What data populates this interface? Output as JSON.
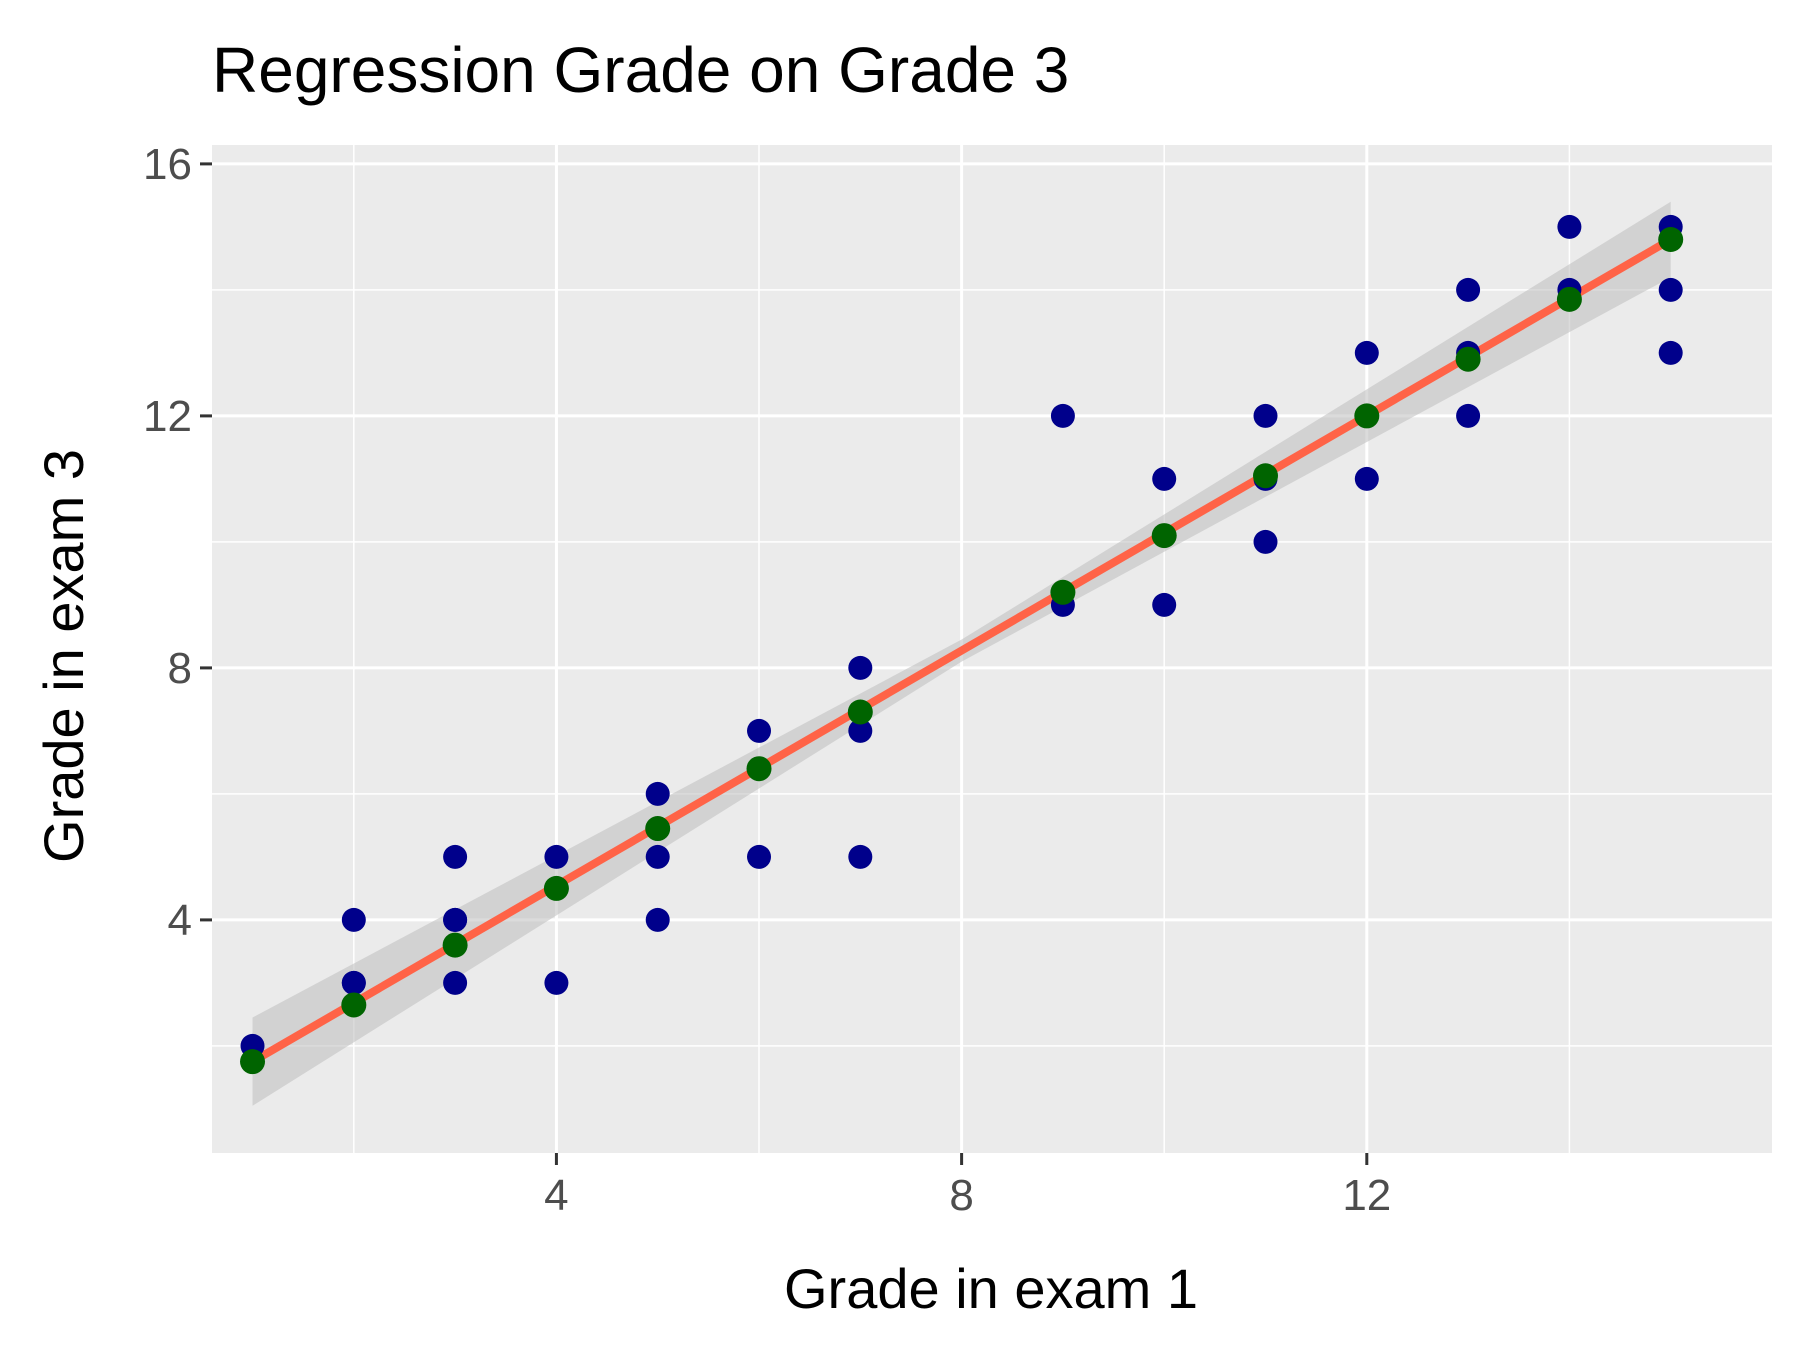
{
  "chart_data": {
    "type": "scatter",
    "title": "Regression Grade on Grade 3",
    "xlabel": "Grade in exam 1",
    "ylabel": "Grade in exam 3",
    "xlim": [
      0.6,
      16.0
    ],
    "ylim": [
      0.3,
      16.3
    ],
    "x_ticks": [
      4,
      8,
      12
    ],
    "x_tick_labels": [
      "4",
      "8",
      "12"
    ],
    "y_ticks": [
      4,
      8,
      12,
      16
    ],
    "y_tick_labels": [
      "4",
      "8",
      "12",
      "16"
    ],
    "grid": true,
    "legend": "none",
    "colors": {
      "panel": "#ebebeb",
      "grid": "#ffffff",
      "points": "#00008b",
      "fitted": "#006400",
      "line": "#ff6347",
      "ribbon": "#bebebe"
    },
    "series": [
      {
        "name": "observed",
        "points": [
          [
            1,
            2
          ],
          [
            2,
            3
          ],
          [
            2,
            4
          ],
          [
            2,
            3
          ],
          [
            3,
            5
          ],
          [
            3,
            4
          ],
          [
            3,
            3
          ],
          [
            3,
            4
          ],
          [
            4,
            5
          ],
          [
            4,
            3
          ],
          [
            5,
            6
          ],
          [
            5,
            5
          ],
          [
            5,
            4
          ],
          [
            6,
            7
          ],
          [
            6,
            5
          ],
          [
            7,
            8
          ],
          [
            7,
            7
          ],
          [
            7,
            5
          ],
          [
            9,
            12
          ],
          [
            9,
            9
          ],
          [
            10,
            11
          ],
          [
            10,
            9
          ],
          [
            11,
            12
          ],
          [
            11,
            10
          ],
          [
            11,
            11
          ],
          [
            12,
            13
          ],
          [
            12,
            11
          ],
          [
            12,
            12
          ],
          [
            13,
            14
          ],
          [
            13,
            13
          ],
          [
            13,
            12
          ],
          [
            14,
            15
          ],
          [
            14,
            14
          ],
          [
            15,
            15
          ],
          [
            15,
            14
          ],
          [
            15,
            13
          ]
        ]
      },
      {
        "name": "fitted",
        "points": [
          [
            1,
            1.75
          ],
          [
            2,
            2.65
          ],
          [
            3,
            3.6
          ],
          [
            4,
            4.5
          ],
          [
            5,
            5.45
          ],
          [
            6,
            6.4
          ],
          [
            7,
            7.3
          ],
          [
            9,
            9.2
          ],
          [
            10,
            10.1
          ],
          [
            11,
            11.05
          ],
          [
            12,
            12.0
          ],
          [
            13,
            12.9
          ],
          [
            14,
            13.85
          ],
          [
            15,
            14.8
          ]
        ]
      }
    ],
    "regression": {
      "x_range": [
        1,
        15
      ],
      "y_start": 1.75,
      "y_end": 14.8,
      "ci_start": [
        1.05,
        2.45
      ],
      "ci_end": [
        14.2,
        15.4
      ],
      "ci_mid_x": 8,
      "ci_mid": [
        8.1,
        8.45
      ]
    }
  }
}
